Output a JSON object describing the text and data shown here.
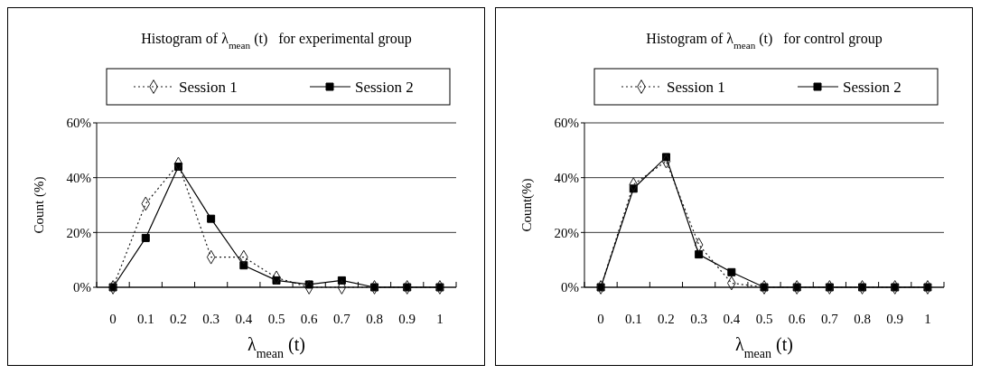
{
  "chart_data": [
    {
      "type": "line",
      "title": "Histogram of λ$_{mean}$(t)   for experimental group",
      "xlabel": "λ$_{mean}$(t)",
      "ylabel": "Count (%)",
      "categories": [
        "0",
        "0.1",
        "0.2",
        "0.3",
        "0.4",
        "0.5",
        "0.6",
        "0.7",
        "0.8",
        "0.9",
        "1"
      ],
      "ylim": [
        0,
        60
      ],
      "yticks": [
        {
          "value": 0,
          "label": "0%"
        },
        {
          "value": 20,
          "label": "20%"
        },
        {
          "value": 40,
          "label": "40%"
        },
        {
          "value": 60,
          "label": "60%"
        }
      ],
      "grid": "y",
      "legend": "top",
      "series": [
        {
          "name": "Session 1",
          "color": "#1a1a1a",
          "marker": "diamond",
          "line_style": "dotted",
          "values": [
            0,
            30.5,
            45,
            11,
            11,
            3.5,
            0,
            0,
            0,
            0,
            0
          ]
        },
        {
          "name": "Session 2",
          "color": "#000000",
          "marker": "square",
          "line_style": "solid",
          "values": [
            0,
            18,
            44,
            25,
            8,
            2.5,
            1,
            2.5,
            0,
            0,
            0
          ]
        }
      ]
    },
    {
      "type": "line",
      "title": "Histogram of λ$_{mean}$(t)   for control group",
      "xlabel": "λ$_{mean}$(t)",
      "ylabel": "Count(%)",
      "categories": [
        "0",
        "0.1",
        "0.2",
        "0.3",
        "0.4",
        "0.5",
        "0.6",
        "0.7",
        "0.8",
        "0.9",
        "1"
      ],
      "ylim": [
        0,
        60
      ],
      "yticks": [
        {
          "value": 0,
          "label": "0%"
        },
        {
          "value": 20,
          "label": "20%"
        },
        {
          "value": 40,
          "label": "40%"
        },
        {
          "value": 60,
          "label": "60%"
        }
      ],
      "grid": "y",
      "legend": "top",
      "series": [
        {
          "name": "Session 1",
          "color": "#1a1a1a",
          "marker": "diamond",
          "line_style": "dotted",
          "values": [
            0,
            37.5,
            46,
            15.5,
            1.5,
            0,
            0,
            0,
            0,
            0,
            0
          ]
        },
        {
          "name": "Session 2",
          "color": "#000000",
          "marker": "square",
          "line_style": "solid",
          "values": [
            0,
            36,
            47.5,
            12,
            5.5,
            0,
            0,
            0,
            0,
            0,
            0
          ]
        }
      ]
    }
  ]
}
